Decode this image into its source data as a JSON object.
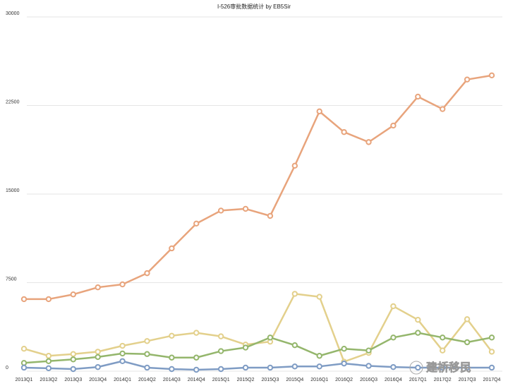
{
  "chart_data": {
    "type": "line",
    "title": "I-526审批数据统计 by EB5Sir",
    "categories": [
      "2013Q1",
      "2013Q2",
      "2013Q3",
      "2013Q4",
      "2014Q1",
      "2014Q2",
      "2014Q3",
      "2014Q4",
      "2015Q1",
      "2015Q2",
      "2015Q3",
      "2015Q4",
      "2016Q1",
      "2016Q2",
      "2016Q3",
      "2016Q4",
      "2017Q1",
      "2017Q2",
      "2017Q3",
      "2017Q4"
    ],
    "series": [
      {
        "color": "#e8a47c",
        "values": [
          6100,
          6100,
          6500,
          7100,
          7350,
          8300,
          10400,
          12500,
          13600,
          13750,
          13150,
          17400,
          22000,
          20250,
          19400,
          20800,
          23250,
          22200,
          24700,
          25050
        ]
      },
      {
        "color": "#e3d08c",
        "values": [
          1900,
          1300,
          1450,
          1650,
          2150,
          2550,
          3000,
          3250,
          2950,
          2250,
          2500,
          6550,
          6300,
          800,
          1550,
          5500,
          4350,
          1750,
          4400,
          1650
        ]
      },
      {
        "color": "#94b66c",
        "values": [
          700,
          850,
          1000,
          1200,
          1500,
          1450,
          1150,
          1150,
          1700,
          2000,
          2850,
          2200,
          1300,
          1900,
          1750,
          2850,
          3250,
          2850,
          2450,
          2850
        ]
      },
      {
        "color": "#7f9cc4",
        "values": [
          300,
          250,
          180,
          350,
          850,
          300,
          180,
          120,
          180,
          300,
          300,
          400,
          400,
          650,
          450,
          350,
          300,
          300,
          300,
          300
        ]
      }
    ],
    "ylim": [
      0,
      30000
    ],
    "yticks": [
      0,
      7500,
      15000,
      22500,
      30000
    ],
    "grid": true,
    "watermark": "建桥移民"
  }
}
